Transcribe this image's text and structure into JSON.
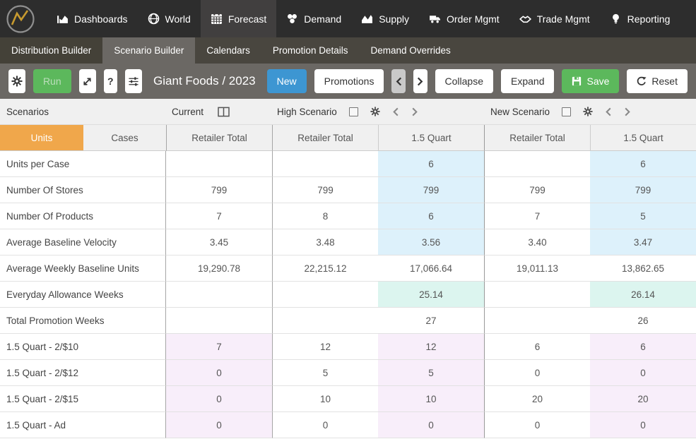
{
  "navbar": {
    "items": [
      {
        "label": "Dashboards",
        "icon": "dashboards-icon",
        "active": false
      },
      {
        "label": "World",
        "icon": "world-icon",
        "active": false
      },
      {
        "label": "Forecast",
        "icon": "forecast-icon",
        "active": true
      },
      {
        "label": "Demand",
        "icon": "demand-icon",
        "active": false
      },
      {
        "label": "Supply",
        "icon": "supply-icon",
        "active": false
      },
      {
        "label": "Order Mgmt",
        "icon": "truck-icon",
        "active": false
      },
      {
        "label": "Trade Mgmt",
        "icon": "handshake-icon",
        "active": false
      },
      {
        "label": "Reporting",
        "icon": "lightbulb-icon",
        "active": false
      }
    ]
  },
  "tabs": {
    "items": [
      {
        "label": "Distribution Builder",
        "active": false
      },
      {
        "label": "Scenario Builder",
        "active": true
      },
      {
        "label": "Calendars",
        "active": false
      },
      {
        "label": "Promotion Details",
        "active": false
      },
      {
        "label": "Demand Overrides",
        "active": false
      }
    ]
  },
  "toolbar": {
    "run_label": "Run",
    "help_label": "?",
    "title": "Giant Foods / 2023",
    "new_label": "New",
    "promotions_label": "Promotions",
    "collapse_label": "Collapse",
    "expand_label": "Expand",
    "save_label": "Save",
    "reset_label": "Reset"
  },
  "scenario_bar": {
    "label": "Scenarios",
    "current_label": "Current",
    "scenarios": [
      {
        "name": "High Scenario"
      },
      {
        "name": "New Scenario"
      }
    ]
  },
  "table": {
    "unit_toggle": {
      "units_label": "Units",
      "cases_label": "Cases",
      "active": "Units"
    },
    "column_headers": [
      "Retailer Total",
      "Retailer Total",
      "1.5 Quart",
      "Retailer Total",
      "1.5 Quart"
    ],
    "rows": [
      {
        "label": "Units per Case",
        "values": [
          "",
          "",
          "6",
          "",
          "6"
        ],
        "band": "blue"
      },
      {
        "label": "Number Of Stores",
        "values": [
          "799",
          "799",
          "799",
          "799",
          "799"
        ],
        "band": "blue"
      },
      {
        "label": "Number Of Products",
        "values": [
          "7",
          "8",
          "6",
          "7",
          "5"
        ],
        "band": "blue"
      },
      {
        "label": "Average Baseline Velocity",
        "values": [
          "3.45",
          "3.48",
          "3.56",
          "3.40",
          "3.47"
        ],
        "band": "blue"
      },
      {
        "label": "Average Weekly Baseline Units",
        "values": [
          "19,290.78",
          "22,215.12",
          "17,066.64",
          "19,011.13",
          "13,862.65"
        ],
        "band": "none"
      },
      {
        "label": "Everyday Allowance Weeks",
        "values": [
          "",
          "",
          "25.14",
          "",
          "26.14"
        ],
        "band": "mint"
      },
      {
        "label": "Total Promotion Weeks",
        "values": [
          "",
          "",
          "27",
          "",
          "26"
        ],
        "band": "none"
      },
      {
        "label": "1.5 Quart - 2/$10",
        "values": [
          "7",
          "12",
          "12",
          "6",
          "6"
        ],
        "band": "pink"
      },
      {
        "label": "1.5 Quart - 2/$12",
        "values": [
          "0",
          "5",
          "5",
          "0",
          "0"
        ],
        "band": "pink"
      },
      {
        "label": "1.5 Quart - 2/$15",
        "values": [
          "0",
          "10",
          "10",
          "20",
          "20"
        ],
        "band": "pink"
      },
      {
        "label": "1.5 Quart - Ad",
        "values": [
          "0",
          "0",
          "0",
          "0",
          "0"
        ],
        "band": "pink"
      }
    ]
  },
  "colors": {
    "accent_orange": "#f0a74b",
    "accent_blue": "#3d96d2",
    "accent_green": "#5cb85c",
    "cell_blue": "#ddf1fb",
    "cell_mint": "#dcf5ef",
    "cell_pink": "#f8eefa",
    "navbar_bg": "#2d2d2d",
    "toolbar_bg": "#6b6864"
  }
}
